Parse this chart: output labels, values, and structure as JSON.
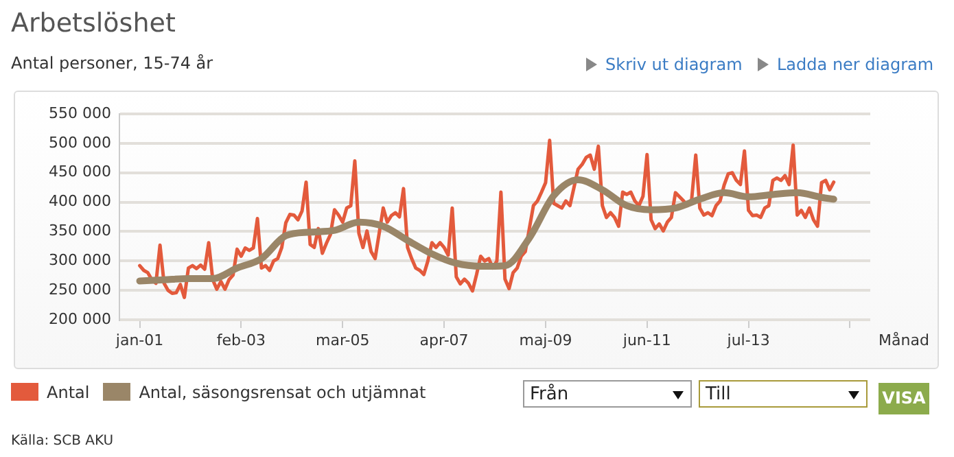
{
  "chart_data": {
    "type": "line",
    "title": "Arbetslöshet",
    "subtitle": "Antal personer, 15-74 år",
    "xlabel": "Månad",
    "annotations": [
      "Skriv ut diagram",
      "Ladda ner diagram",
      "Från",
      "Till",
      "VISA",
      "Källa: SCB AKU"
    ],
    "xlim": [
      "2000-08",
      "2016-01"
    ],
    "xticks": [
      {
        "value": "2001-01",
        "label": "jan-01"
      },
      {
        "value": "2003-02",
        "label": "feb-03"
      },
      {
        "value": "2005-03",
        "label": "mar-05"
      },
      {
        "value": "2007-04",
        "label": "apr-07"
      },
      {
        "value": "2009-05",
        "label": "maj-09"
      },
      {
        "value": "2011-06",
        "label": "jun-11"
      },
      {
        "value": "2013-07",
        "label": "jul-13"
      },
      {
        "value": "2015-08",
        "label": null
      }
    ],
    "ylim": [
      200000,
      550000
    ],
    "yticks": [
      {
        "value": 200000,
        "label": "200 000"
      },
      {
        "value": 250000,
        "label": "250 000"
      },
      {
        "value": 300000,
        "label": "300 000"
      },
      {
        "value": 350000,
        "label": "350 000"
      },
      {
        "value": 400000,
        "label": "400 000"
      },
      {
        "value": 450000,
        "label": "450 000"
      },
      {
        "value": 500000,
        "label": "500 000"
      },
      {
        "value": 550000,
        "label": "550 000"
      }
    ],
    "grid": "y",
    "legend": "bottom",
    "marker": "none",
    "line_style": "solid",
    "series": [
      {
        "name": "Antal",
        "color": "#e35a3c",
        "x": [
          "2001-01",
          "2001-02",
          "2001-03",
          "2001-04",
          "2001-05",
          "2001-06",
          "2001-07",
          "2001-08",
          "2001-09",
          "2001-10",
          "2001-11",
          "2001-12",
          "2002-01",
          "2002-02",
          "2002-03",
          "2002-04",
          "2002-05",
          "2002-06",
          "2002-07",
          "2002-08",
          "2002-09",
          "2002-10",
          "2002-11",
          "2002-12",
          "2003-01",
          "2003-02",
          "2003-03",
          "2003-04",
          "2003-05",
          "2003-06",
          "2003-07",
          "2003-08",
          "2003-09",
          "2003-10",
          "2003-11",
          "2003-12",
          "2004-01",
          "2004-02",
          "2004-03",
          "2004-04",
          "2004-05",
          "2004-06",
          "2004-07",
          "2004-08",
          "2004-09",
          "2004-10",
          "2004-11",
          "2004-12",
          "2005-01",
          "2005-02",
          "2005-03",
          "2005-04",
          "2005-05",
          "2005-06",
          "2005-07",
          "2005-08",
          "2005-09",
          "2005-10",
          "2005-11",
          "2005-12",
          "2006-01",
          "2006-02",
          "2006-03",
          "2006-04",
          "2006-05",
          "2006-06",
          "2006-07",
          "2006-08",
          "2006-09",
          "2006-10",
          "2006-11",
          "2006-12",
          "2007-01",
          "2007-02",
          "2007-03",
          "2007-04",
          "2007-05",
          "2007-06",
          "2007-07",
          "2007-08",
          "2007-09",
          "2007-10",
          "2007-11",
          "2007-12",
          "2008-01",
          "2008-02",
          "2008-03",
          "2008-04",
          "2008-05",
          "2008-06",
          "2008-07",
          "2008-08",
          "2008-09",
          "2008-10",
          "2008-11",
          "2008-12",
          "2009-01",
          "2009-02",
          "2009-03",
          "2009-04",
          "2009-05",
          "2009-06",
          "2009-07",
          "2009-08",
          "2009-09",
          "2009-10",
          "2009-11",
          "2009-12",
          "2010-01",
          "2010-02",
          "2010-03",
          "2010-04",
          "2010-05",
          "2010-06",
          "2010-07",
          "2010-08",
          "2010-09",
          "2010-10",
          "2010-11",
          "2010-12",
          "2011-01",
          "2011-02",
          "2011-03",
          "2011-04",
          "2011-05",
          "2011-06",
          "2011-07",
          "2011-08",
          "2011-09",
          "2011-10",
          "2011-11",
          "2011-12",
          "2012-01",
          "2012-02",
          "2012-03",
          "2012-04",
          "2012-05",
          "2012-06",
          "2012-07",
          "2012-08",
          "2012-09",
          "2012-10",
          "2012-11",
          "2012-12",
          "2013-01",
          "2013-02",
          "2013-03",
          "2013-04",
          "2013-05",
          "2013-06",
          "2013-07",
          "2013-08",
          "2013-09",
          "2013-10",
          "2013-11",
          "2013-12",
          "2014-01",
          "2014-02",
          "2014-03",
          "2014-04",
          "2014-05",
          "2014-06",
          "2014-07",
          "2014-08",
          "2014-09",
          "2014-10",
          "2014-11",
          "2014-12",
          "2015-01",
          "2015-02",
          "2015-03",
          "2015-04"
        ],
        "values": [
          292000,
          284000,
          280000,
          268000,
          262000,
          327000,
          262000,
          250000,
          245000,
          246000,
          260000,
          238000,
          288000,
          292000,
          287000,
          293000,
          286000,
          331000,
          268000,
          252000,
          265000,
          252000,
          268000,
          276000,
          320000,
          308000,
          322000,
          318000,
          322000,
          372000,
          288000,
          292000,
          284000,
          300000,
          304000,
          323000,
          365000,
          379000,
          378000,
          370000,
          385000,
          434000,
          328000,
          323000,
          355000,
          313000,
          330000,
          345000,
          387000,
          378000,
          366000,
          390000,
          394000,
          470000,
          347000,
          323000,
          351000,
          316000,
          304000,
          347000,
          390000,
          366000,
          377000,
          382000,
          375000,
          423000,
          323000,
          304000,
          288000,
          284000,
          277000,
          300000,
          331000,
          323000,
          331000,
          323000,
          310000,
          390000,
          273000,
          261000,
          269000,
          262000,
          249000,
          277000,
          308000,
          300000,
          304000,
          288000,
          300000,
          417000,
          269000,
          253000,
          280000,
          288000,
          308000,
          316000,
          355000,
          394000,
          402000,
          417000,
          433000,
          505000,
          398000,
          394000,
          390000,
          402000,
          394000,
          425000,
          456000,
          464000,
          476000,
          480000,
          456000,
          495000,
          394000,
          374000,
          382000,
          374000,
          359000,
          417000,
          413000,
          417000,
          402000,
          394000,
          410000,
          481000,
          370000,
          355000,
          363000,
          351000,
          366000,
          374000,
          416000,
          409000,
          402000,
          394000,
          405000,
          480000,
          390000,
          378000,
          382000,
          377000,
          394000,
          402000,
          429000,
          448000,
          450000,
          437000,
          430000,
          487000,
          386000,
          377000,
          378000,
          374000,
          390000,
          394000,
          437000,
          441000,
          437000,
          445000,
          430000,
          497000,
          378000,
          386000,
          374000,
          390000,
          370000,
          359000,
          433000,
          437000,
          421000,
          434000
        ]
      },
      {
        "name": "Antal, säsongsrensat och utjämnat",
        "color": "#9a8668",
        "x": [
          "2001-01",
          "2001-07",
          "2002-01",
          "2002-07",
          "2003-01",
          "2003-07",
          "2004-01",
          "2004-07",
          "2005-01",
          "2005-07",
          "2006-01",
          "2006-07",
          "2007-01",
          "2007-07",
          "2008-01",
          "2008-07",
          "2009-01",
          "2009-07",
          "2010-01",
          "2010-07",
          "2011-01",
          "2011-07",
          "2012-01",
          "2012-07",
          "2013-01",
          "2013-07",
          "2014-01",
          "2014-07",
          "2015-01",
          "2015-04"
        ],
        "values": [
          266000,
          268000,
          270000,
          270000,
          288000,
          304000,
          343000,
          349000,
          352000,
          366000,
          359000,
          335000,
          312000,
          296000,
          291000,
          292000,
          339000,
          411000,
          438000,
          421000,
          394000,
          387000,
          390000,
          405000,
          416000,
          409000,
          413000,
          416000,
          408000,
          405000
        ]
      }
    ]
  }
}
